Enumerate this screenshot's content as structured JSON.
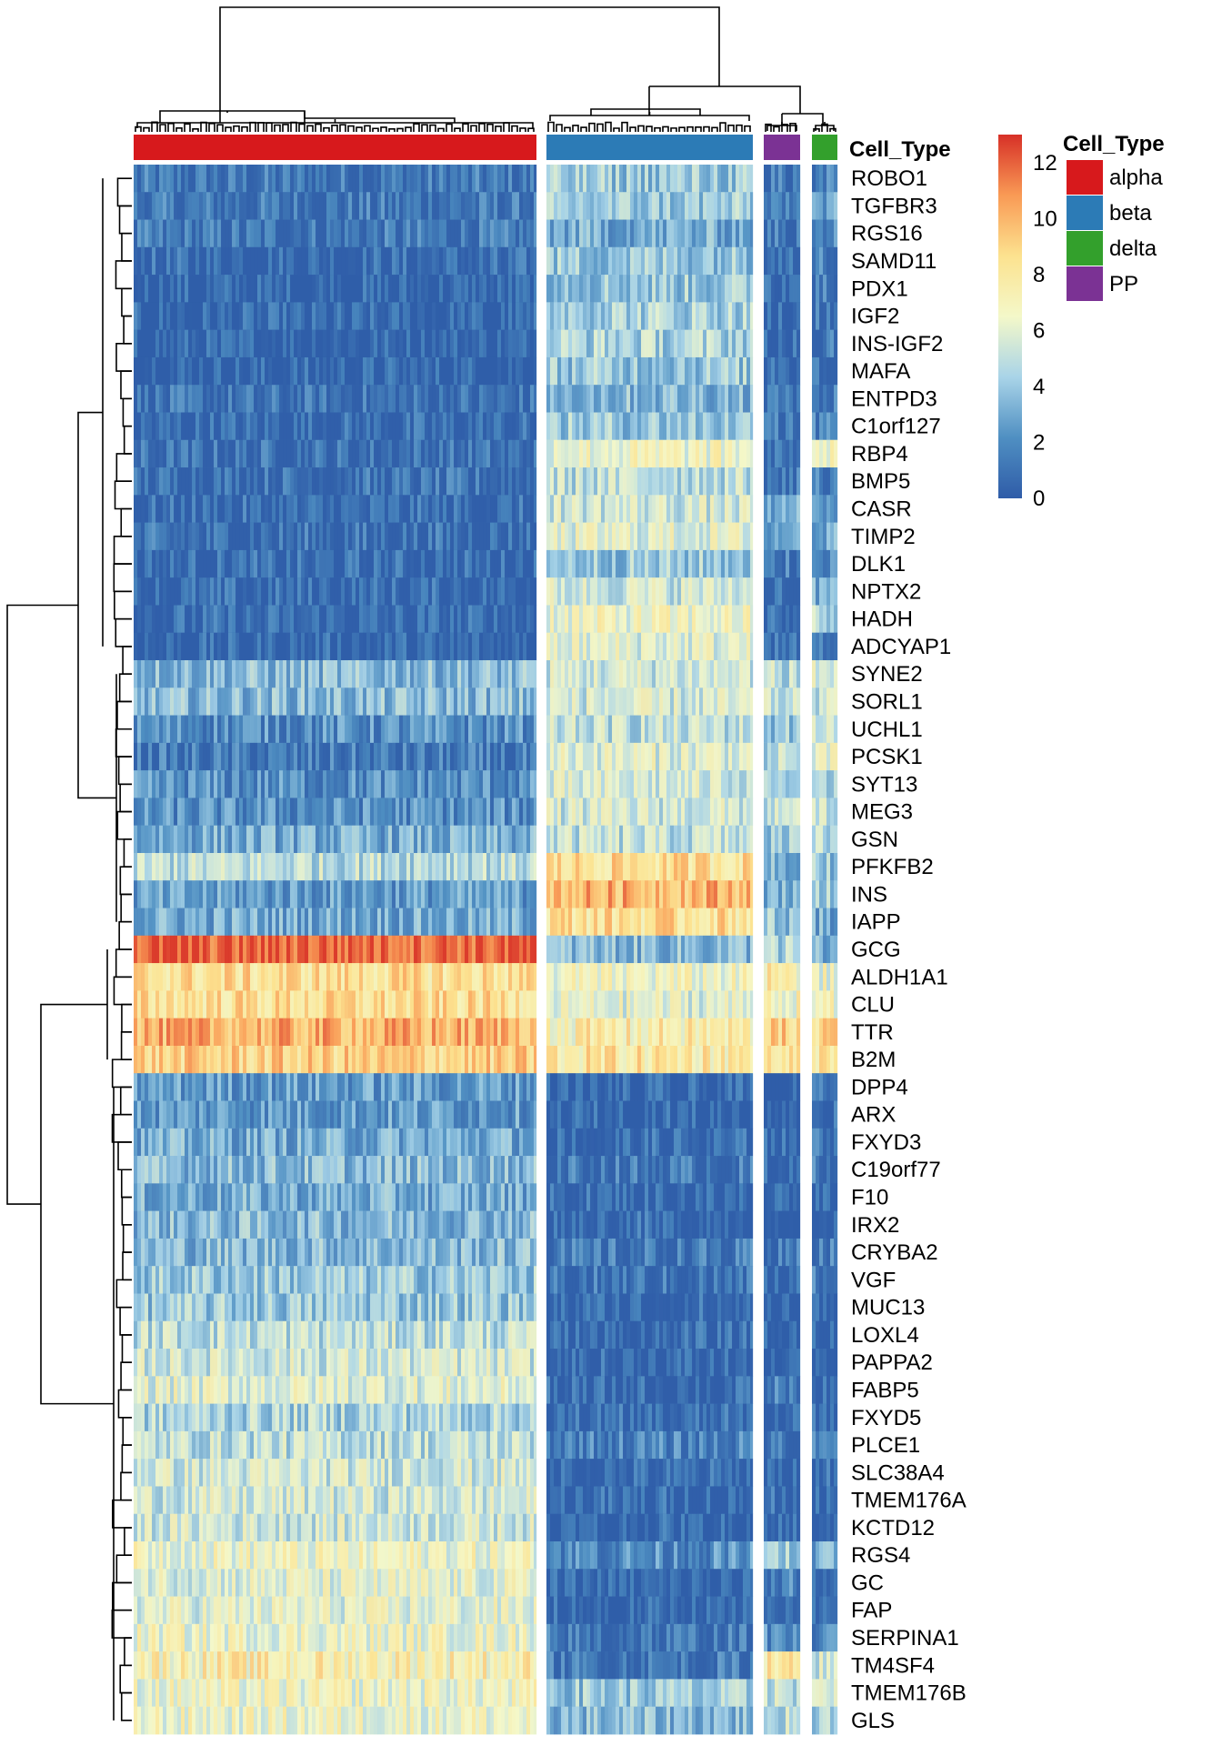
{
  "chart_data": {
    "type": "heatmap",
    "annotation_title": "Cell_Type",
    "legend_title": "Cell_Type",
    "cell_types": [
      {
        "name": "alpha",
        "color": "#D7191C"
      },
      {
        "name": "beta",
        "color": "#2C7BB6"
      },
      {
        "name": "delta",
        "color": "#33A02C"
      },
      {
        "name": "PP",
        "color": "#7B3294"
      }
    ],
    "column_groups": [
      "alpha",
      "beta",
      "PP",
      "delta"
    ],
    "colorbar": {
      "ticks": [
        0,
        2,
        4,
        6,
        8,
        10,
        12
      ],
      "range": [
        0,
        13
      ],
      "colors": [
        "#2F5CA8",
        "#4F8FC2",
        "#A9D4E8",
        "#F4F8C9",
        "#FCE28F",
        "#F99A55",
        "#D73027"
      ]
    },
    "genes": [
      "ROBO1",
      "TGFBR3",
      "RGS16",
      "SAMD11",
      "PDX1",
      "IGF2",
      "INS-IGF2",
      "MAFA",
      "ENTPD3",
      "C1orf127",
      "RBP4",
      "BMP5",
      "CASR",
      "TIMP2",
      "DLK1",
      "NPTX2",
      "HADH",
      "ADCYAP1",
      "SYNE2",
      "SORL1",
      "UCHL1",
      "PCSK1",
      "SYT13",
      "MEG3",
      "GSN",
      "PFKFB2",
      "INS",
      "IAPP",
      "GCG",
      "ALDH1A1",
      "CLU",
      "TTR",
      "B2M",
      "DPP4",
      "ARX",
      "FXYD3",
      "C19orf77",
      "F10",
      "IRX2",
      "CRYBA2",
      "VGF",
      "MUC13",
      "LOXL4",
      "PAPPA2",
      "FABP5",
      "FXYD5",
      "PLCE1",
      "SLC38A4",
      "TMEM176A",
      "KCTD12",
      "RGS4",
      "GC",
      "FAP",
      "SERPINA1",
      "TM4SF4",
      "TMEM176B",
      "GLS"
    ],
    "mean_expression": {
      "alpha": [
        1.0,
        1.0,
        1.0,
        0.5,
        0.3,
        0.3,
        0.3,
        0.3,
        0.7,
        0.5,
        0.7,
        0.7,
        0.5,
        0.7,
        0.5,
        0.5,
        0.5,
        0.3,
        3.5,
        3.5,
        2.0,
        1.0,
        2.0,
        2.0,
        3.0,
        5.0,
        2.5,
        3.0,
        12.0,
        8.5,
        8.5,
        10.0,
        9.0,
        2.5,
        2.5,
        3.0,
        3.5,
        3.0,
        3.5,
        3.5,
        4.0,
        4.0,
        5.0,
        5.5,
        6.0,
        4.5,
        5.0,
        5.5,
        5.5,
        5.5,
        6.5,
        6.0,
        6.0,
        6.5,
        7.5,
        6.5,
        6.5
      ],
      "beta": [
        4.0,
        4.0,
        3.0,
        4.0,
        4.0,
        4.5,
        4.5,
        4.0,
        3.5,
        4.0,
        6.5,
        5.0,
        5.5,
        6.0,
        4.0,
        5.5,
        6.5,
        6.0,
        5.5,
        5.5,
        5.0,
        6.0,
        5.5,
        5.5,
        5.0,
        8.5,
        10.0,
        8.5,
        3.5,
        6.5,
        6.0,
        7.5,
        8.0,
        0.2,
        0.3,
        0.5,
        1.0,
        0.5,
        0.5,
        1.0,
        0.8,
        0.5,
        0.4,
        0.4,
        0.4,
        0.5,
        1.5,
        0.5,
        0.5,
        0.3,
        2.0,
        0.3,
        0.3,
        1.0,
        1.0,
        4.0,
        3.5
      ],
      "PP": [
        1.0,
        2.0,
        1.0,
        1.0,
        0.5,
        0.5,
        0.5,
        0.5,
        1.0,
        1.0,
        1.0,
        1.0,
        3.0,
        2.5,
        1.0,
        1.0,
        0.5,
        0.5,
        5.0,
        5.0,
        4.0,
        5.0,
        4.0,
        5.0,
        4.0,
        3.0,
        3.0,
        4.0,
        4.5,
        7.5,
        7.0,
        9.0,
        8.5,
        0.2,
        0.2,
        0.3,
        0.5,
        0.3,
        0.3,
        0.8,
        0.5,
        0.5,
        0.3,
        0.3,
        1.5,
        0.5,
        1.0,
        0.5,
        0.5,
        0.5,
        4.0,
        1.5,
        1.0,
        2.0,
        7.5,
        5.0,
        5.0
      ],
      "delta": [
        1.5,
        2.5,
        1.5,
        1.5,
        1.0,
        1.0,
        1.0,
        1.0,
        1.5,
        1.5,
        6.5,
        1.5,
        3.0,
        3.0,
        1.5,
        3.0,
        5.0,
        1.0,
        5.5,
        5.5,
        5.0,
        6.0,
        5.0,
        5.0,
        4.5,
        4.0,
        4.0,
        3.0,
        3.0,
        6.5,
        6.5,
        8.5,
        8.5,
        0.5,
        0.5,
        1.0,
        1.0,
        0.5,
        0.5,
        1.0,
        1.0,
        0.5,
        0.5,
        0.5,
        0.5,
        0.5,
        1.0,
        0.5,
        0.5,
        0.5,
        3.0,
        1.0,
        0.5,
        2.0,
        5.5,
        5.0,
        4.5
      ]
    }
  }
}
